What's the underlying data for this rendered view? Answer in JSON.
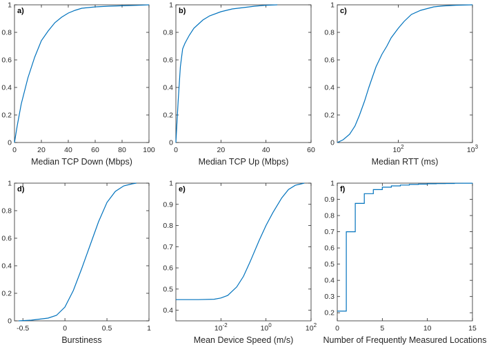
{
  "chart_data": [
    {
      "type": "line",
      "panel_label": "a)",
      "xlabel": "Median TCP Down (Mbps)",
      "x_scale": "linear",
      "xlim": [
        0,
        100
      ],
      "ylim": [
        0,
        1
      ],
      "xticks": [
        0,
        20,
        40,
        60,
        80,
        100
      ],
      "xtick_labels": [
        "0",
        "20",
        "40",
        "60",
        "80",
        "100"
      ],
      "yticks": [
        0,
        0.2,
        0.4,
        0.6,
        0.8,
        1
      ],
      "ytick_labels": [
        "0",
        "0.2",
        "0.4",
        "0.6",
        "0.8",
        "1"
      ],
      "series": [
        {
          "step": false,
          "x": [
            0,
            2,
            5,
            10,
            15,
            20,
            25,
            30,
            35,
            40,
            45,
            50,
            60,
            70,
            80,
            90,
            100
          ],
          "y": [
            0,
            0.12,
            0.28,
            0.47,
            0.62,
            0.74,
            0.81,
            0.87,
            0.91,
            0.94,
            0.96,
            0.975,
            0.985,
            0.99,
            0.993,
            0.996,
            1.0
          ]
        }
      ]
    },
    {
      "type": "line",
      "panel_label": "b)",
      "xlabel": "Median TCP Up (Mbps)",
      "x_scale": "linear",
      "xlim": [
        0,
        60
      ],
      "ylim": [
        0,
        1
      ],
      "xticks": [
        0,
        20,
        40,
        60
      ],
      "xtick_labels": [
        "0",
        "20",
        "40",
        "60"
      ],
      "yticks": [
        0,
        0.2,
        0.4,
        0.6,
        0.8,
        1
      ],
      "ytick_labels": [
        "0",
        "0.2",
        "0.4",
        "0.6",
        "0.8",
        "1"
      ],
      "series": [
        {
          "step": false,
          "x": [
            0,
            1,
            2,
            3,
            4,
            5,
            6,
            8,
            10,
            12,
            15,
            20,
            25,
            30,
            35,
            40,
            45
          ],
          "y": [
            0,
            0.3,
            0.55,
            0.68,
            0.72,
            0.75,
            0.78,
            0.83,
            0.86,
            0.89,
            0.92,
            0.95,
            0.97,
            0.98,
            0.99,
            0.997,
            1.0
          ]
        }
      ]
    },
    {
      "type": "line",
      "panel_label": "c)",
      "xlabel": "Median RTT (ms)",
      "x_scale": "log",
      "xlim": [
        15,
        1000
      ],
      "ylim": [
        0,
        1
      ],
      "xticks": [
        100,
        1000
      ],
      "xtick_labels": [
        [
          "10",
          "2"
        ],
        [
          "10",
          "3"
        ]
      ],
      "yticks": [
        0,
        0.2,
        0.4,
        0.6,
        0.8,
        1
      ],
      "ytick_labels": [
        "0",
        "0.2",
        "0.4",
        "0.6",
        "0.8",
        "1"
      ],
      "series": [
        {
          "step": false,
          "x": [
            15,
            18,
            22,
            26,
            30,
            35,
            40,
            45,
            50,
            60,
            70,
            80,
            100,
            120,
            150,
            200,
            300,
            400,
            600,
            1000
          ],
          "y": [
            0,
            0.02,
            0.06,
            0.12,
            0.2,
            0.3,
            0.4,
            0.48,
            0.55,
            0.64,
            0.7,
            0.76,
            0.83,
            0.88,
            0.93,
            0.96,
            0.985,
            0.992,
            0.997,
            1.0
          ]
        }
      ]
    },
    {
      "type": "line",
      "panel_label": "d)",
      "xlabel": "Burstiness",
      "x_scale": "linear",
      "xlim": [
        -0.6,
        1
      ],
      "ylim": [
        0,
        1
      ],
      "xticks": [
        -0.5,
        0,
        0.5,
        1
      ],
      "xtick_labels": [
        "-0.5",
        "0",
        "0.5",
        "1"
      ],
      "yticks": [
        0,
        0.2,
        0.4,
        0.6,
        0.8,
        1
      ],
      "ytick_labels": [
        "0",
        "0.2",
        "0.4",
        "0.6",
        "0.8",
        "1"
      ],
      "series": [
        {
          "step": false,
          "x": [
            -0.55,
            -0.4,
            -0.2,
            -0.1,
            0,
            0.1,
            0.2,
            0.3,
            0.4,
            0.5,
            0.6,
            0.7,
            0.8,
            0.85
          ],
          "y": [
            0,
            0.005,
            0.02,
            0.04,
            0.1,
            0.22,
            0.38,
            0.55,
            0.72,
            0.86,
            0.94,
            0.98,
            0.995,
            1.0
          ]
        }
      ]
    },
    {
      "type": "line",
      "panel_label": "e)",
      "xlabel": "Mean Device Speed (m/s)",
      "x_scale": "log",
      "xlim": [
        0.0001,
        100
      ],
      "ylim": [
        0.35,
        1
      ],
      "xticks": [
        0.01,
        1,
        100
      ],
      "xtick_labels": [
        [
          "10",
          "-2"
        ],
        [
          "10",
          "0"
        ],
        [
          "10",
          "2"
        ]
      ],
      "yticks": [
        0.4,
        0.5,
        0.6,
        0.7,
        0.8,
        0.9,
        1
      ],
      "ytick_labels": [
        "0.4",
        "0.5",
        "0.6",
        "0.7",
        "0.8",
        "0.9",
        "1"
      ],
      "series": [
        {
          "step": false,
          "x": [
            0.0001,
            0.001,
            0.005,
            0.01,
            0.02,
            0.05,
            0.1,
            0.2,
            0.5,
            1,
            2,
            5,
            10,
            20,
            50
          ],
          "y": [
            0.45,
            0.45,
            0.452,
            0.458,
            0.47,
            0.51,
            0.56,
            0.63,
            0.73,
            0.8,
            0.86,
            0.93,
            0.97,
            0.99,
            1.0
          ]
        }
      ]
    },
    {
      "type": "line",
      "panel_label": "f)",
      "xlabel": "Number of Frequently Measured Locations",
      "x_scale": "linear",
      "xlim": [
        0,
        15
      ],
      "ylim": [
        0.15,
        1
      ],
      "xticks": [
        0,
        5,
        10,
        15
      ],
      "xtick_labels": [
        "0",
        "5",
        "10",
        "15"
      ],
      "yticks": [
        0.2,
        0.3,
        0.4,
        0.5,
        0.6,
        0.7,
        0.8,
        0.9,
        1
      ],
      "ytick_labels": [
        "0.2",
        "0.3",
        "0.4",
        "0.5",
        "0.6",
        "0.7",
        "0.8",
        "0.9",
        "1"
      ],
      "series": [
        {
          "step": true,
          "x": [
            0,
            1,
            2,
            3,
            4,
            5,
            6,
            7,
            8,
            9,
            10,
            11,
            12,
            13,
            14,
            15
          ],
          "y": [
            0.21,
            0.7,
            0.875,
            0.935,
            0.96,
            0.975,
            0.983,
            0.988,
            0.992,
            0.994,
            0.996,
            0.997,
            0.998,
            0.999,
            0.9995,
            1.0
          ]
        }
      ]
    }
  ],
  "colors": {
    "line": "#0072BD",
    "axis": "#262626"
  }
}
